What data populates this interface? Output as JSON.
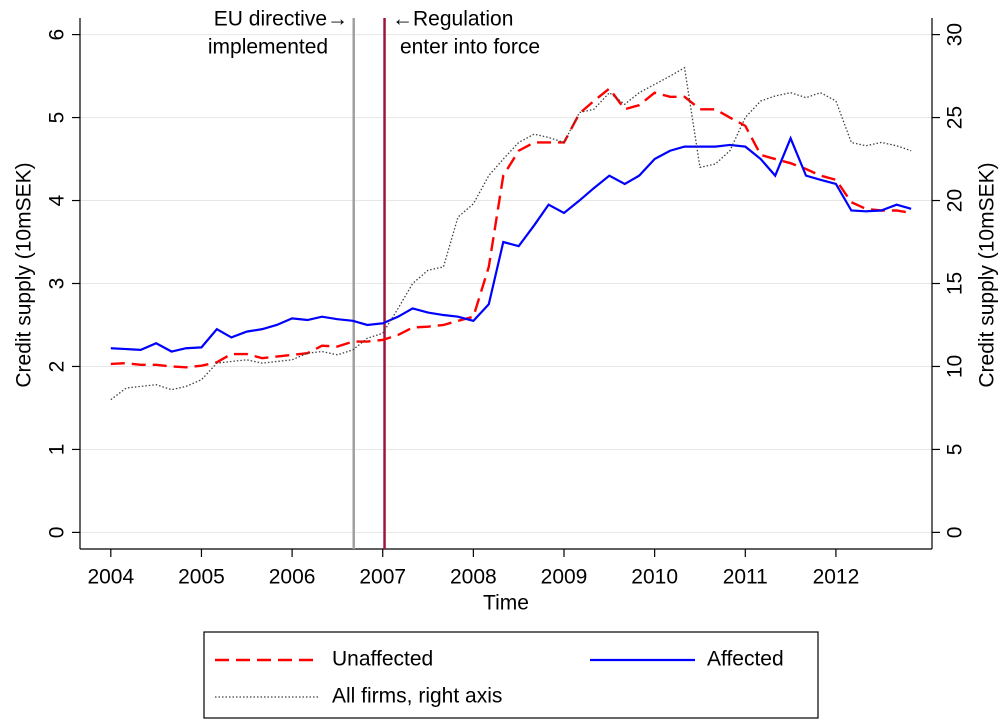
{
  "chart_data": {
    "type": "line",
    "xlabel": "Time",
    "ylabel": "Credit supply (10mSEK)",
    "y2label": "Credit supply (10mSEK)",
    "xlim": [
      2003.66,
      2013.06
    ],
    "xticks": [
      2004,
      2005,
      2006,
      2007,
      2008,
      2009,
      2010,
      2011,
      2012
    ],
    "ylim": [
      -0.2,
      6.2
    ],
    "yticks": [
      0,
      1,
      2,
      3,
      4,
      5,
      6
    ],
    "y2lim": [
      -1,
      31
    ],
    "y2ticks": [
      0,
      5,
      10,
      15,
      20,
      25,
      30
    ],
    "grid": true,
    "vlines": [
      {
        "x": 2006.68,
        "color": "#a0a0a0"
      },
      {
        "x": 2007.02,
        "color": "#a0143c"
      }
    ],
    "annotations": [
      "EU directive→",
      "implemented",
      "←Regulation",
      "enter into force"
    ],
    "x": [
      2004,
      2004.17,
      2004.33,
      2004.5,
      2004.67,
      2004.83,
      2005,
      2005.17,
      2005.33,
      2005.5,
      2005.67,
      2005.83,
      2006,
      2006.17,
      2006.33,
      2006.5,
      2006.67,
      2006.83,
      2007,
      2007.17,
      2007.33,
      2007.5,
      2007.67,
      2007.83,
      2008,
      2008.17,
      2008.33,
      2008.5,
      2008.67,
      2008.83,
      2009,
      2009.17,
      2009.33,
      2009.5,
      2009.67,
      2009.83,
      2010,
      2010.17,
      2010.33,
      2010.5,
      2010.67,
      2010.83,
      2011,
      2011.17,
      2011.33,
      2011.5,
      2011.67,
      2011.83,
      2012,
      2012.17,
      2012.33,
      2012.5,
      2012.67,
      2012.83
    ],
    "series": [
      {
        "name": "Unaffected",
        "color": "#ff0000",
        "dash": "14 7",
        "values": [
          2.03,
          2.04,
          2.02,
          2.02,
          2.0,
          1.99,
          2.01,
          2.05,
          2.15,
          2.15,
          2.1,
          2.12,
          2.14,
          2.16,
          2.25,
          2.24,
          2.3,
          2.3,
          2.32,
          2.38,
          2.47,
          2.48,
          2.5,
          2.55,
          2.6,
          3.2,
          4.3,
          4.6,
          4.7,
          4.7,
          4.7,
          5.05,
          5.2,
          5.35,
          5.1,
          5.15,
          5.3,
          5.25,
          5.25,
          5.1,
          5.1,
          5.0,
          4.9,
          4.55,
          4.5,
          4.45,
          4.38,
          4.3,
          4.25,
          3.98,
          3.9,
          3.88,
          3.88,
          3.85
        ]
      },
      {
        "name": "Affected",
        "color": "#0000ff",
        "dash": "none",
        "values": [
          2.22,
          2.21,
          2.2,
          2.28,
          2.18,
          2.22,
          2.23,
          2.45,
          2.35,
          2.42,
          2.45,
          2.5,
          2.58,
          2.56,
          2.6,
          2.57,
          2.55,
          2.5,
          2.52,
          2.6,
          2.7,
          2.65,
          2.62,
          2.6,
          2.55,
          2.75,
          3.5,
          3.45,
          3.7,
          3.95,
          3.85,
          4.0,
          4.15,
          4.3,
          4.2,
          4.3,
          4.5,
          4.6,
          4.65,
          4.65,
          4.65,
          4.67,
          4.65,
          4.5,
          4.3,
          4.75,
          4.3,
          4.25,
          4.2,
          3.88,
          3.87,
          3.88,
          3.95,
          3.9
        ]
      },
      {
        "name": "All firms, right axis",
        "color": "#404040",
        "dash": "1.5 2",
        "axis": "y2",
        "values": [
          8.0,
          8.7,
          8.8,
          8.9,
          8.6,
          8.8,
          9.2,
          10.2,
          10.3,
          10.4,
          10.2,
          10.3,
          10.4,
          10.8,
          10.9,
          10.7,
          11.0,
          11.7,
          12.0,
          13.5,
          15.0,
          15.8,
          16.0,
          19.0,
          19.8,
          21.5,
          22.5,
          23.5,
          24.0,
          23.8,
          23.5,
          25.3,
          25.5,
          26.5,
          25.8,
          26.5,
          27.0,
          27.5,
          28.0,
          22.0,
          22.2,
          23.0,
          25.0,
          26.0,
          26.3,
          26.5,
          26.2,
          26.5,
          26.0,
          23.5,
          23.3,
          23.5,
          23.3,
          23.0
        ]
      }
    ]
  }
}
